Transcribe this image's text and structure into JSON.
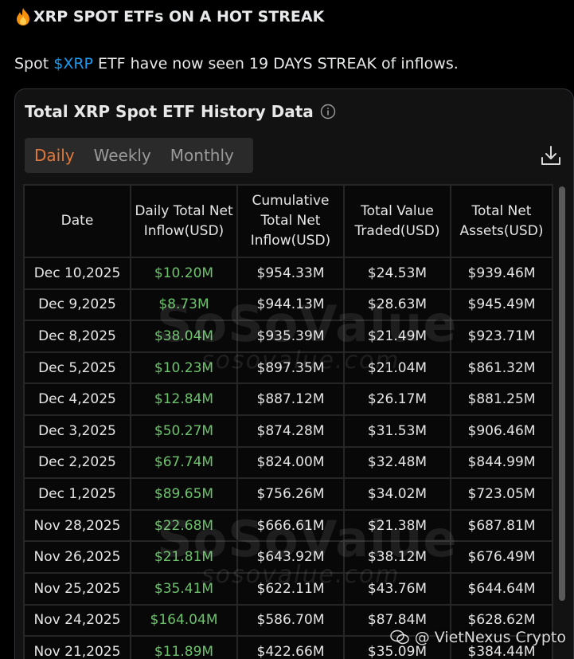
{
  "post": {
    "title": "XRP SPOT ETFs ON A HOT STREAK",
    "body_prefix": "Spot ",
    "cashtag": "$XRP",
    "body_suffix": " ETF have now seen 19 DAYS STREAK of inflows."
  },
  "card": {
    "title": "Total XRP Spot ETF History Data",
    "tabs": [
      {
        "label": "Daily",
        "active": true
      },
      {
        "label": "Weekly",
        "active": false
      },
      {
        "label": "Monthly",
        "active": false
      }
    ]
  },
  "table": {
    "headers": [
      "Date",
      "Daily Total Net Inflow(USD)",
      "Cumulative Total Net Inflow(USD)",
      "Total Value Traded(USD)",
      "Total Net Assets(USD)"
    ],
    "rows": [
      {
        "date": "Dec 10,2025",
        "daily": "$10.20M",
        "cumulative": "$954.33M",
        "traded": "$24.53M",
        "assets": "$939.46M"
      },
      {
        "date": "Dec 9,2025",
        "daily": "$8.73M",
        "cumulative": "$944.13M",
        "traded": "$28.63M",
        "assets": "$945.49M"
      },
      {
        "date": "Dec 8,2025",
        "daily": "$38.04M",
        "cumulative": "$935.39M",
        "traded": "$21.49M",
        "assets": "$923.71M"
      },
      {
        "date": "Dec 5,2025",
        "daily": "$10.23M",
        "cumulative": "$897.35M",
        "traded": "$21.04M",
        "assets": "$861.32M"
      },
      {
        "date": "Dec 4,2025",
        "daily": "$12.84M",
        "cumulative": "$887.12M",
        "traded": "$26.17M",
        "assets": "$881.25M"
      },
      {
        "date": "Dec 3,2025",
        "daily": "$50.27M",
        "cumulative": "$874.28M",
        "traded": "$31.53M",
        "assets": "$906.46M"
      },
      {
        "date": "Dec 2,2025",
        "daily": "$67.74M",
        "cumulative": "$824.00M",
        "traded": "$32.48M",
        "assets": "$844.99M"
      },
      {
        "date": "Dec 1,2025",
        "daily": "$89.65M",
        "cumulative": "$756.26M",
        "traded": "$34.02M",
        "assets": "$723.05M"
      },
      {
        "date": "Nov 28,2025",
        "daily": "$22.68M",
        "cumulative": "$666.61M",
        "traded": "$21.38M",
        "assets": "$687.81M"
      },
      {
        "date": "Nov 26,2025",
        "daily": "$21.81M",
        "cumulative": "$643.92M",
        "traded": "$38.12M",
        "assets": "$676.49M"
      },
      {
        "date": "Nov 25,2025",
        "daily": "$35.41M",
        "cumulative": "$622.11M",
        "traded": "$43.76M",
        "assets": "$644.64M"
      },
      {
        "date": "Nov 24,2025",
        "daily": "$164.04M",
        "cumulative": "$586.70M",
        "traded": "$87.84M",
        "assets": "$628.62M"
      },
      {
        "date": "Nov 21,2025",
        "daily": "$11.89M",
        "cumulative": "$422.66M",
        "traded": "$35.09M",
        "assets": "$384.44M"
      }
    ]
  },
  "watermark": {
    "brand": "SoSoValue",
    "site": "sosovalue.com"
  },
  "credit": {
    "text": "@ VietNexus Crypto"
  },
  "colors": {
    "inflow_green": "#6cc36c",
    "active_tab": "#e0783a",
    "cashtag": "#1d9bf0"
  },
  "icons": {
    "title_emoji": "fire-icon",
    "info": "info-icon",
    "download": "download-icon"
  }
}
